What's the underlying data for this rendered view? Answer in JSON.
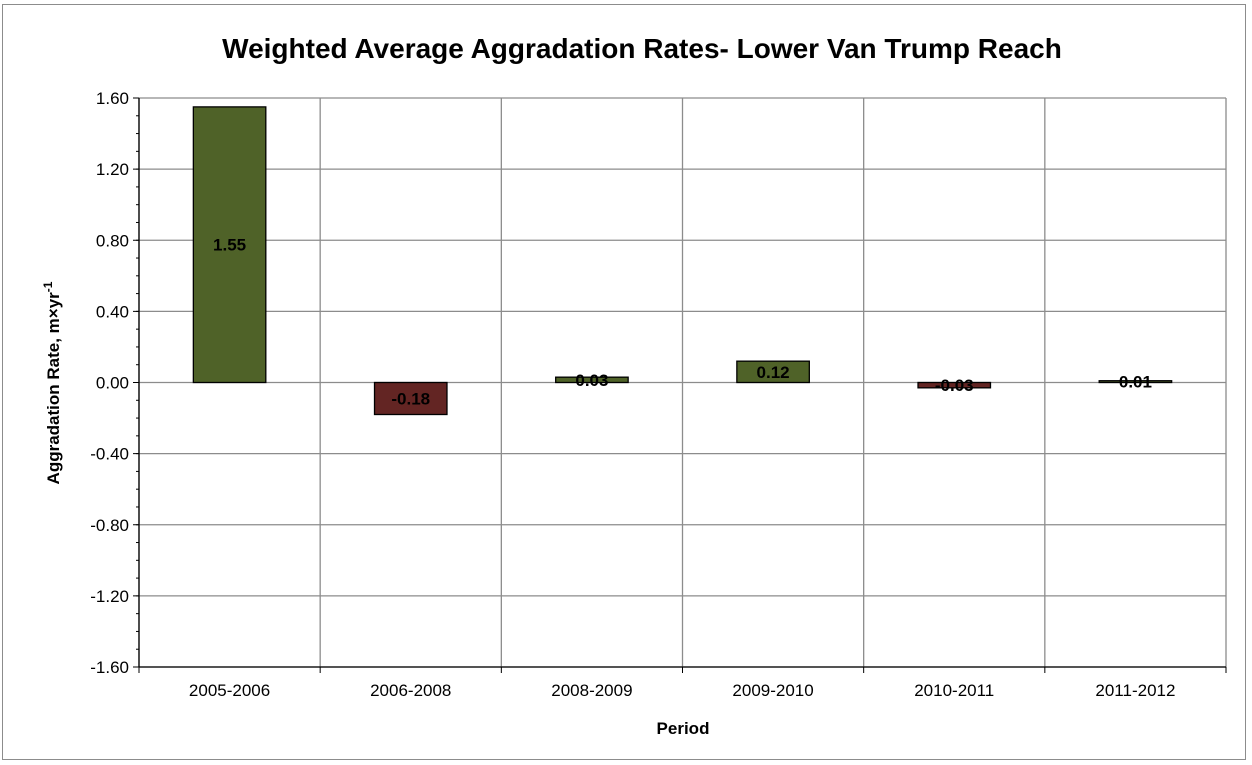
{
  "chart_data": {
    "type": "bar",
    "title": "Weighted Average Aggradation Rates- Lower Van Trump Reach",
    "xlabel": "Period",
    "ylabel": "Aggradation Rate, m×yr",
    "ylabel_superscript": "-1",
    "categories": [
      "2005-2006",
      "2006-2008",
      "2008-2009",
      "2009-2010",
      "2010-2011",
      "2011-2012"
    ],
    "values": [
      1.55,
      -0.18,
      0.03,
      0.12,
      -0.03,
      0.01
    ],
    "value_labels": [
      "1.55",
      "-0.18",
      "0.03",
      "0.12",
      "-0.03",
      "0.01"
    ],
    "ylim": [
      -1.6,
      1.6
    ],
    "yticks": [
      1.6,
      1.2,
      0.8,
      0.4,
      0.0,
      -0.4,
      -0.8,
      -1.2,
      -1.6
    ],
    "ytick_labels": [
      "1.60",
      "1.20",
      "0.80",
      "0.40",
      "0.00",
      "-0.40",
      "-0.80",
      "-1.20",
      "-1.60"
    ],
    "grid": true,
    "colors": {
      "positive": "#4f6228",
      "negative": "#632523",
      "grid": "#8c8c8c",
      "axis": "#000000"
    }
  }
}
